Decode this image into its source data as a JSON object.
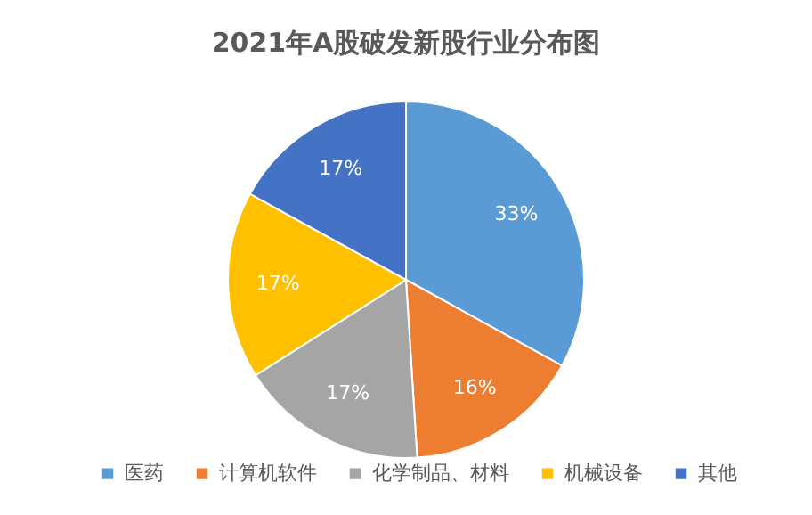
{
  "chart_data": {
    "type": "pie",
    "title": "2021年A股破发新股行业分布图",
    "categories": [
      "医药",
      "计算机软件",
      "化学制品、材料",
      "机械设备",
      "其他"
    ],
    "values": [
      33,
      16,
      17,
      17,
      17
    ],
    "colors": [
      "#5b9bd5",
      "#ed7d31",
      "#a5a5a5",
      "#ffc000",
      "#4472c4"
    ],
    "value_labels": [
      "33%",
      "16%",
      "17%",
      "17%",
      "17%"
    ],
    "legend": "bottom"
  }
}
